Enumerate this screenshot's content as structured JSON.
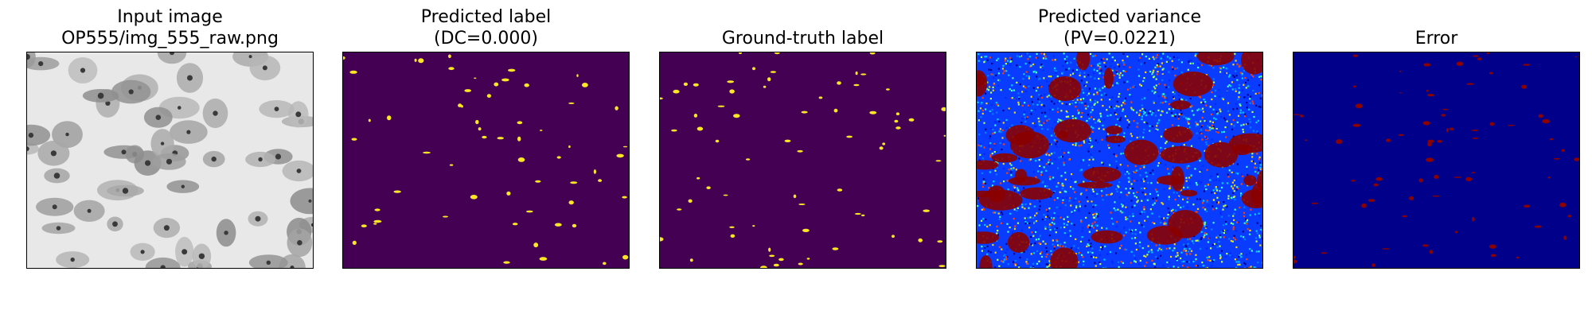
{
  "figure": {
    "panels": [
      {
        "title_lines": [
          "Input image",
          "OP555/img_555_raw.png"
        ],
        "colormap": "gray"
      },
      {
        "title_lines": [
          "Predicted label",
          "(DC=0.000)"
        ],
        "colormap": "viridis"
      },
      {
        "title_lines": [
          "Ground-truth label"
        ],
        "colormap": "viridis"
      },
      {
        "title_lines": [
          "Predicted variance",
          "(PV=0.0221)"
        ],
        "colormap": "jet"
      },
      {
        "title_lines": [
          "Error"
        ],
        "colormap": "jet"
      }
    ]
  },
  "colors": {
    "viridis_low": "#440154",
    "viridis_high": "#fde725",
    "jet_low": "#00008b",
    "jet_high": "#8b0000",
    "gray_background": "#e8e8e8",
    "gray_cell": "#9a9a9a"
  }
}
